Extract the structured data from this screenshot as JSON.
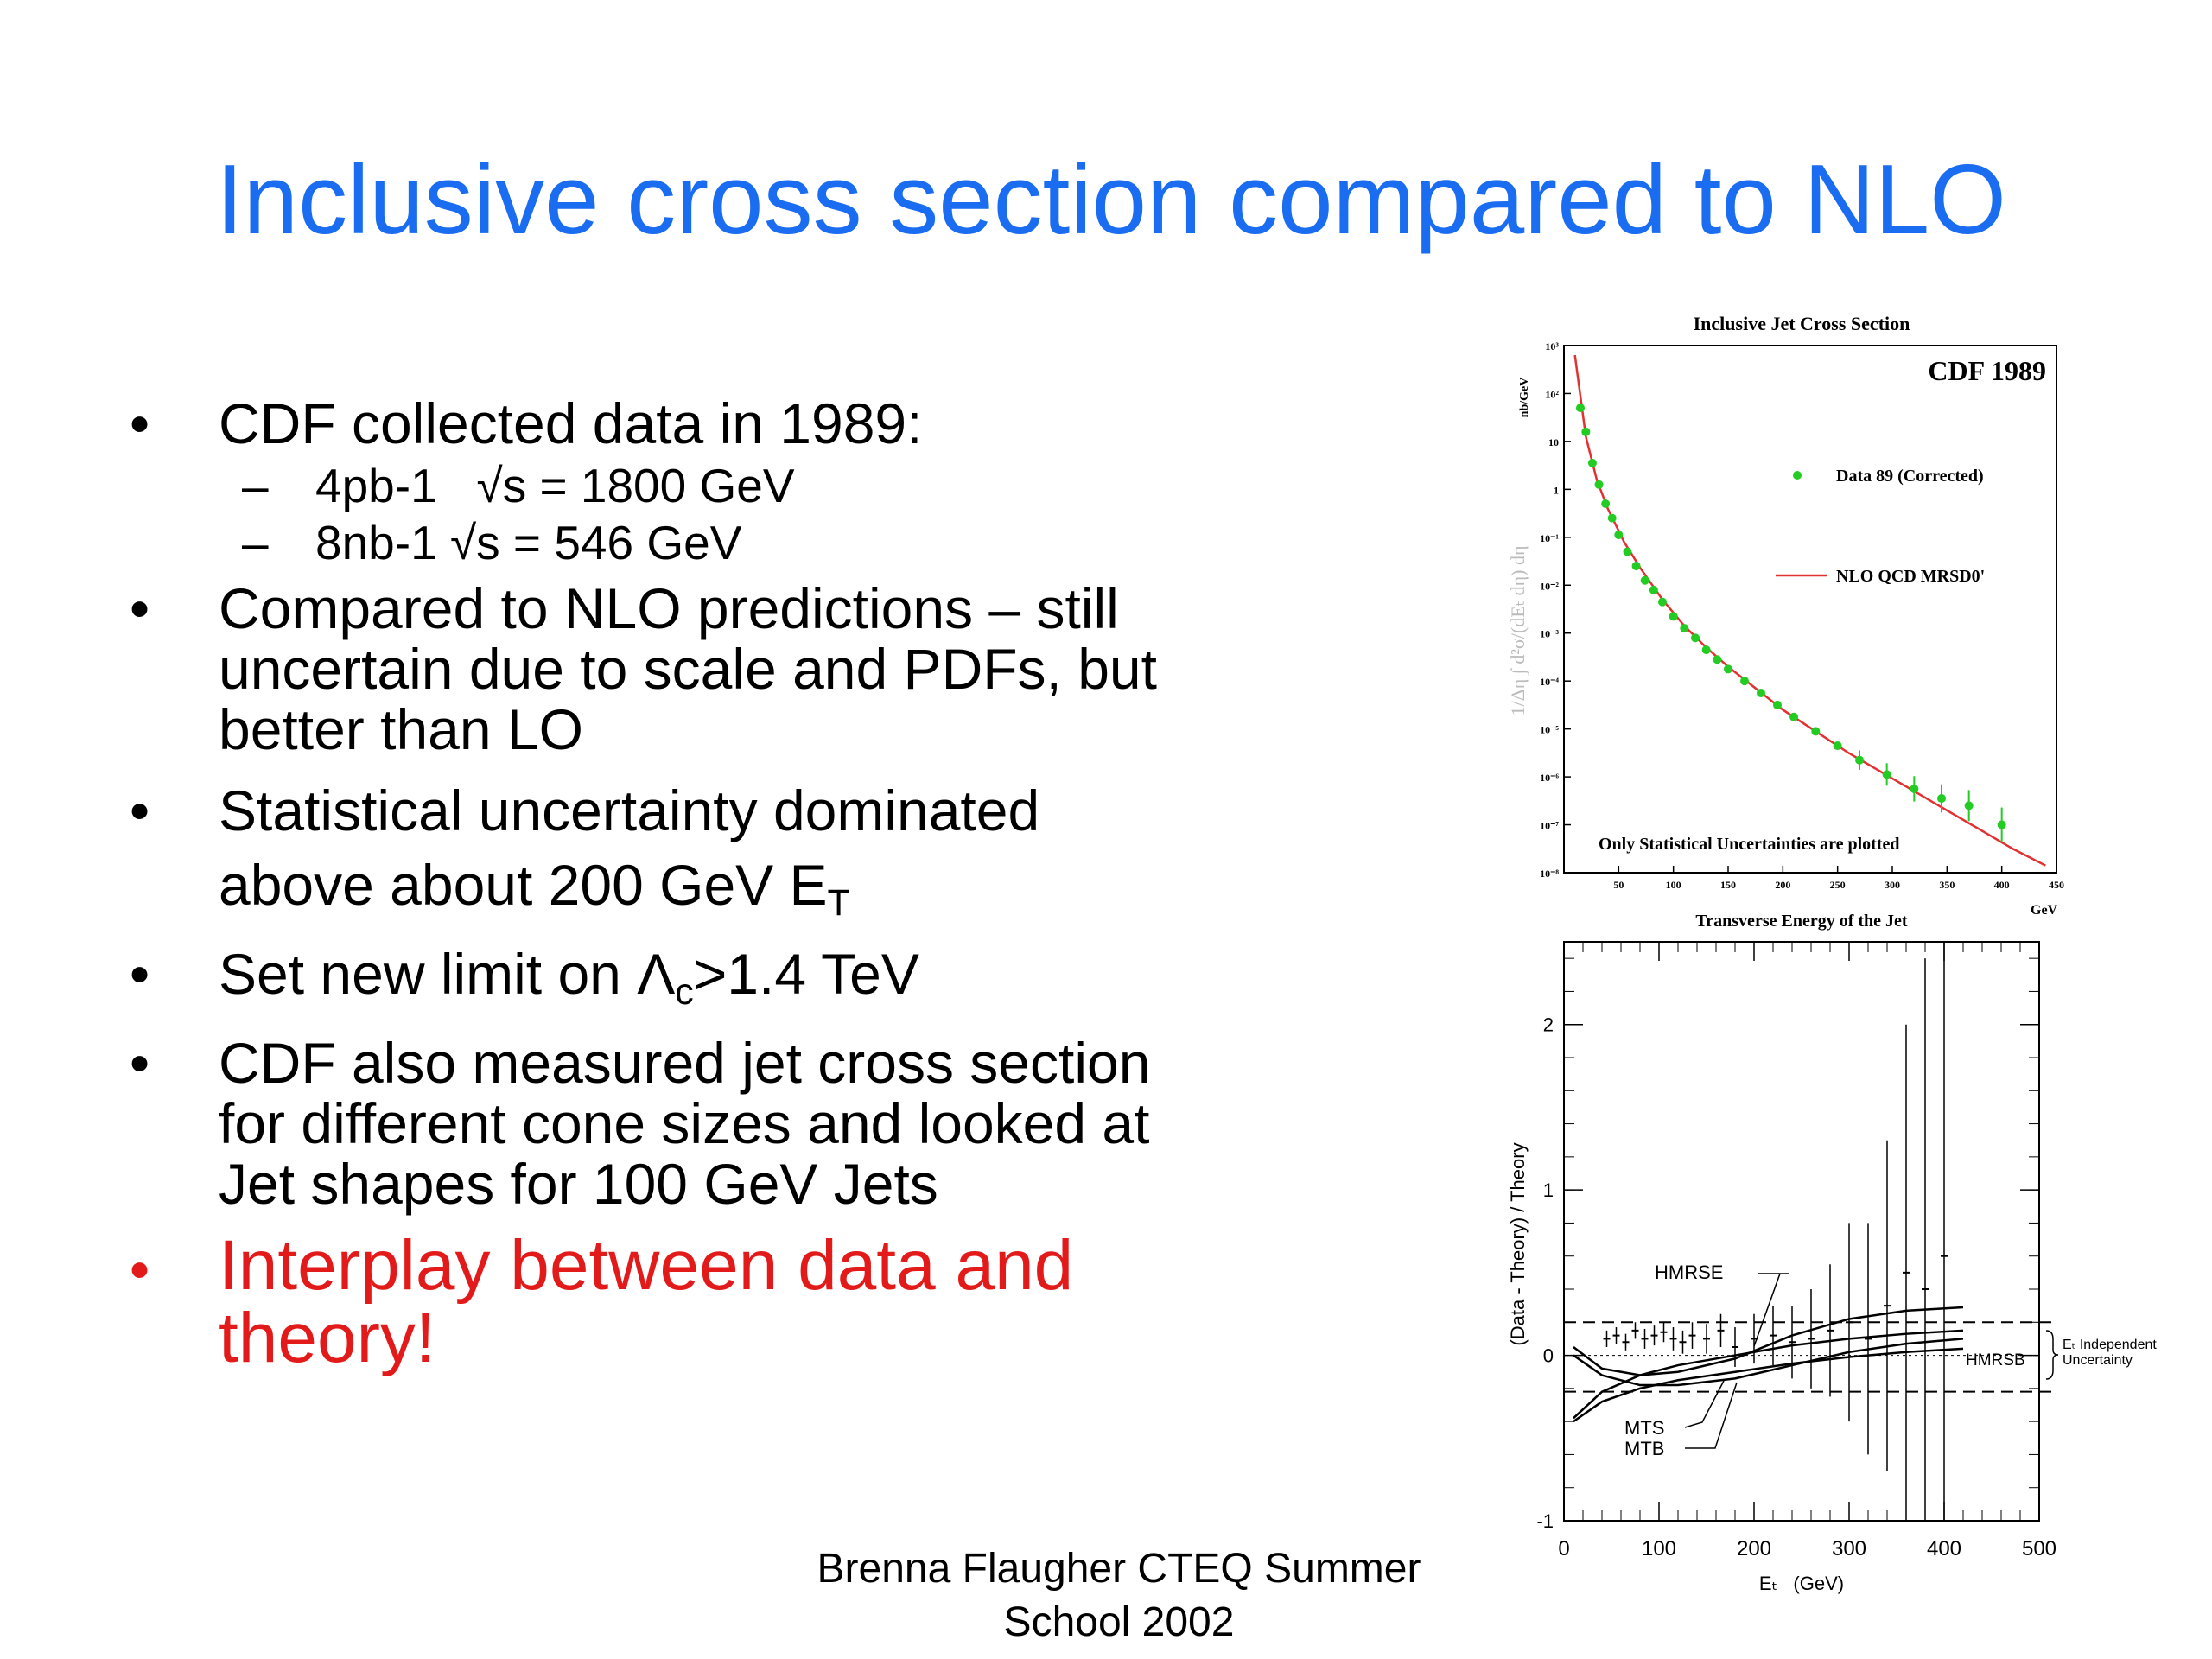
{
  "slide": {
    "title": "Inclusive cross section compared to NLO",
    "bullets": [
      {
        "text": "CDF collected data in 1989:"
      },
      {
        "subs": [
          "4pb-1   √s = 1800 GeV",
          "8nb-1 √s = 546 GeV"
        ]
      },
      {
        "text": "Compared to NLO predictions – still uncertain due to scale  and PDFs, but better than LO"
      },
      {
        "text_main": "Statistical uncertainty dominated above about 200 GeV E",
        "text_sub": "T"
      },
      {
        "pre": "Set new limit on Λ",
        "sub": "c",
        "post": ">1.4 TeV"
      },
      {
        "text": "CDF also measured jet cross section for different cone sizes and looked at Jet shapes for 100 GeV Jets"
      },
      {
        "text": "Interplay between data and theory!"
      }
    ],
    "bullet_glyph": "•",
    "dash_glyph": "–",
    "accent_color": "#1a6cf0",
    "highlight_color": "#e31a1a",
    "footer": [
      "Brenna Flaugher CTEQ Summer",
      "School 2002"
    ]
  },
  "chart_data": [
    {
      "type": "scatter",
      "title": "Inclusive Jet Cross Section",
      "corner_label": "CDF 1989",
      "xlabel": "Transverse Energy of the Jet",
      "xunit": "GeV",
      "ylabel": "1/Δη ∫ d²σ/(dEₜ dη) dη",
      "yunit": "nb/GeV",
      "xlim": [
        0,
        450
      ],
      "ylim_log10": [
        -8,
        3
      ],
      "yscale": "log",
      "x_ticks": [
        50,
        100,
        150,
        200,
        250,
        300,
        350,
        400,
        450
      ],
      "y_tick_exponents": [
        3,
        2,
        1,
        0,
        -1,
        -2,
        -3,
        -4,
        -5,
        -6,
        -7,
        -8
      ],
      "y_tick_labels": [
        "10³",
        "10²",
        "10",
        "1",
        "10⁻¹",
        "10⁻²",
        "10⁻³",
        "10⁻⁴",
        "10⁻⁵",
        "10⁻⁶",
        "10⁻⁷",
        "10⁻⁸"
      ],
      "legend": [
        {
          "label": "Data 89 (Corrected)",
          "color": "#22cc22"
        },
        {
          "label": "NLO QCD MRSD0'",
          "color": "#e33030"
        }
      ],
      "annotation": "Only Statistical Uncertainties are plotted",
      "series": [
        {
          "name": "Data 89 (Corrected)",
          "x": [
            15,
            20,
            26,
            32,
            38,
            44,
            50,
            58,
            66,
            74,
            82,
            90,
            100,
            110,
            120,
            130,
            140,
            150,
            165,
            180,
            195,
            210,
            230,
            250,
            270,
            295,
            320,
            345,
            370,
            400
          ],
          "y_log10": [
            1.7,
            1.2,
            0.55,
            0.1,
            -0.3,
            -0.6,
            -0.95,
            -1.3,
            -1.6,
            -1.9,
            -2.1,
            -2.35,
            -2.65,
            -2.9,
            -3.1,
            -3.35,
            -3.55,
            -3.75,
            -4.0,
            -4.25,
            -4.5,
            -4.75,
            -5.05,
            -5.35,
            -5.65,
            -5.95,
            -6.25,
            -6.45,
            -6.6,
            -7.0
          ]
        },
        {
          "name": "NLO QCD MRSD0'",
          "x": [
            10,
            20,
            30,
            40,
            55,
            70,
            90,
            110,
            130,
            150,
            175,
            200,
            230,
            260,
            290,
            320,
            350,
            380,
            410,
            440
          ],
          "y_log10": [
            2.8,
            1.1,
            0.2,
            -0.4,
            -1.1,
            -1.65,
            -2.3,
            -2.85,
            -3.3,
            -3.7,
            -4.15,
            -4.6,
            -5.05,
            -5.5,
            -5.9,
            -6.3,
            -6.7,
            -7.1,
            -7.5,
            -7.85
          ]
        }
      ]
    },
    {
      "type": "line",
      "ylabel": "(Data - Theory) / Theory",
      "xlabel": "Eₜ   (GeV)",
      "xlim": [
        0,
        500
      ],
      "ylim": [
        -1,
        2.5
      ],
      "x_ticks": [
        0,
        100,
        200,
        300,
        400,
        500
      ],
      "y_ticks": [
        -1,
        0,
        1,
        2
      ],
      "labels": [
        "HMRSE",
        "HMRSB",
        "MTS",
        "MTB"
      ],
      "band_note": [
        "Eₜ Independent",
        "Uncertainty"
      ],
      "band": [
        -0.22,
        0.2
      ],
      "series": [
        {
          "name": "HMRSE",
          "x": [
            10,
            40,
            80,
            120,
            180,
            240,
            300,
            360,
            420
          ],
          "y": [
            0.05,
            -0.08,
            -0.12,
            -0.1,
            -0.02,
            0.12,
            0.22,
            0.27,
            0.29
          ]
        },
        {
          "name": "HMRSB",
          "x": [
            10,
            40,
            80,
            120,
            180,
            240,
            300,
            360,
            420
          ],
          "y": [
            0.0,
            -0.12,
            -0.18,
            -0.18,
            -0.14,
            -0.06,
            0.02,
            0.07,
            0.1
          ]
        },
        {
          "name": "MTS",
          "x": [
            10,
            40,
            80,
            120,
            180,
            240,
            300,
            360,
            420
          ],
          "y": [
            -0.38,
            -0.22,
            -0.12,
            -0.06,
            0.0,
            0.06,
            0.1,
            0.13,
            0.15
          ]
        },
        {
          "name": "MTB",
          "x": [
            10,
            40,
            80,
            120,
            180,
            240,
            300,
            360,
            420
          ],
          "y": [
            -0.4,
            -0.28,
            -0.2,
            -0.15,
            -0.1,
            -0.05,
            -0.01,
            0.02,
            0.04
          ]
        }
      ],
      "data_points": {
        "x": [
          45,
          55,
          65,
          75,
          85,
          95,
          105,
          115,
          125,
          135,
          150,
          165,
          180,
          200,
          220,
          240,
          260,
          280,
          300,
          320,
          340,
          360,
          380,
          400
        ],
        "y": [
          0.1,
          0.12,
          0.08,
          0.15,
          0.1,
          0.12,
          0.14,
          0.1,
          0.08,
          0.12,
          0.1,
          0.15,
          0.05,
          0.1,
          0.12,
          0.08,
          0.1,
          0.15,
          0.2,
          0.1,
          0.3,
          0.5,
          0.4,
          0.6
        ],
        "err": [
          0.05,
          0.05,
          0.05,
          0.05,
          0.06,
          0.06,
          0.06,
          0.07,
          0.07,
          0.08,
          0.09,
          0.1,
          0.12,
          0.15,
          0.18,
          0.22,
          0.3,
          0.4,
          0.6,
          0.7,
          1.0,
          1.5,
          2.0,
          2.6
        ]
      }
    }
  ]
}
